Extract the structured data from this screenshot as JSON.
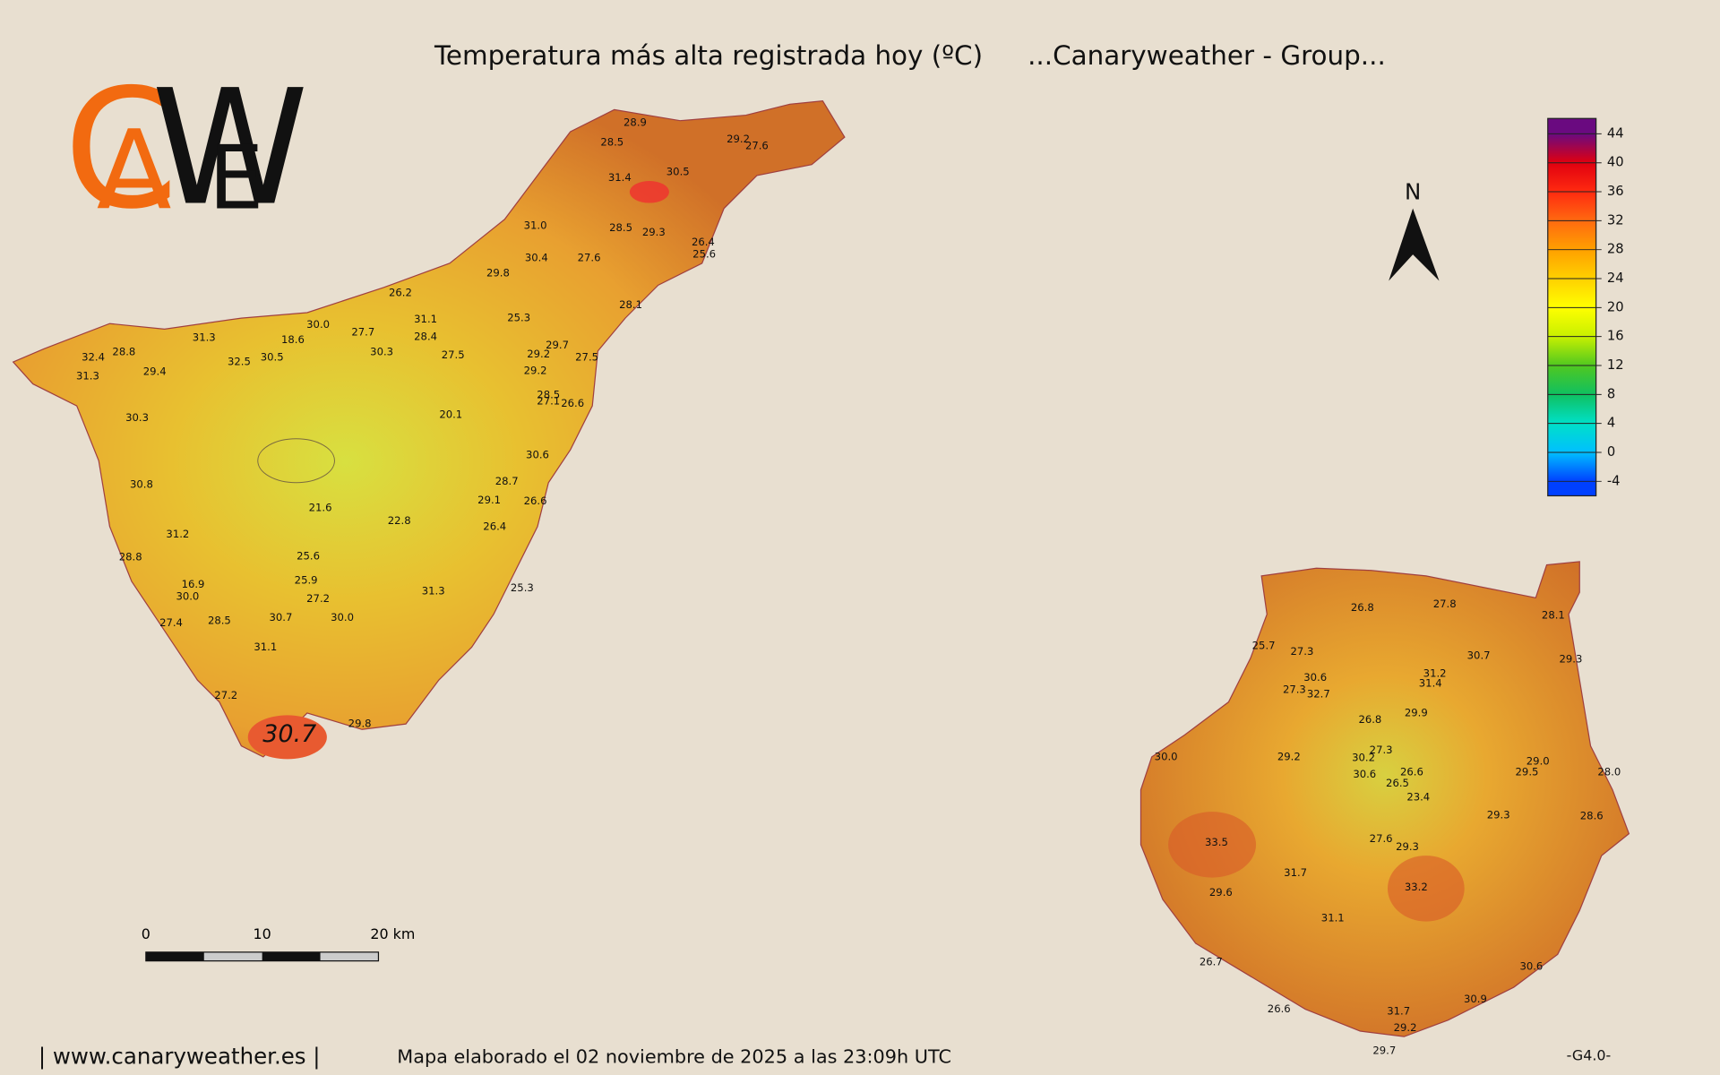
{
  "title": "Temperatura más alta registrada hoy (ºC)",
  "subtitle": "...Canaryweather - Group...",
  "logo": [
    "C",
    "A",
    "W",
    "E"
  ],
  "north": "N",
  "colorbar": {
    "ticks": [
      44,
      40,
      36,
      32,
      28,
      24,
      20,
      16,
      12,
      8,
      4,
      0,
      -4
    ],
    "colors": [
      "#6a0a80",
      "#e00010",
      "#ff2a10",
      "#ff6a10",
      "#ffa000",
      "#ffd000",
      "#ffff00",
      "#c8f000",
      "#50c820",
      "#10c060",
      "#00e0c8",
      "#00c0ff",
      "#0040ff"
    ]
  },
  "scale_bar": [
    "0",
    "10",
    "20 km"
  ],
  "tenerife": {
    "stations": [
      "28.9",
      "28.5",
      "29.2",
      "27.6",
      "31.4",
      "30.5",
      "28.5",
      "29.3",
      "31.0",
      "26.4",
      "25.6",
      "30.4",
      "27.6",
      "29.8",
      "26.2",
      "28.1",
      "31.3",
      "30.0",
      "27.7",
      "31.1",
      "28.4",
      "25.3",
      "18.6",
      "32.4",
      "28.8",
      "32.5",
      "30.5",
      "30.3",
      "27.5",
      "29.2",
      "29.7",
      "27.5",
      "31.3",
      "29.4",
      "29.2",
      "28.5",
      "27.1",
      "26.6",
      "30.3",
      "20.1",
      "30.6",
      "30.8",
      "28.7",
      "29.1",
      "26.6",
      "21.6",
      "22.8",
      "26.4",
      "31.2",
      "28.8",
      "25.6",
      "16.9",
      "25.9",
      "30.0",
      "27.2",
      "31.3",
      "25.3",
      "27.4",
      "28.5",
      "30.7",
      "30.0",
      "31.1",
      "27.2",
      "29.8"
    ],
    "highlight": "30.7"
  },
  "gran_canaria": {
    "stations": [
      "26.8",
      "27.8",
      "28.1",
      "25.7",
      "27.3",
      "30.7",
      "29.3",
      "31.2",
      "31.4",
      "30.6",
      "27.3",
      "32.7",
      "26.8",
      "29.9",
      "27.3",
      "30.0",
      "29.2",
      "30.2",
      "29.0",
      "28.0",
      "26.6",
      "30.6",
      "29.5",
      "26.5",
      "23.4",
      "29.3",
      "28.6",
      "27.6",
      "29.3",
      "33.5",
      "31.7",
      "33.2",
      "29.6",
      "31.1",
      "30.6",
      "26.7",
      "30.9",
      "26.6",
      "31.7",
      "29.2",
      "29.7"
    ]
  },
  "footer": {
    "site": "| www.canaryweather.es |",
    "made": "Mapa elaborado el 02 noviembre de 2025 a las 23:09h UTC",
    "version": "-G4.0-"
  }
}
